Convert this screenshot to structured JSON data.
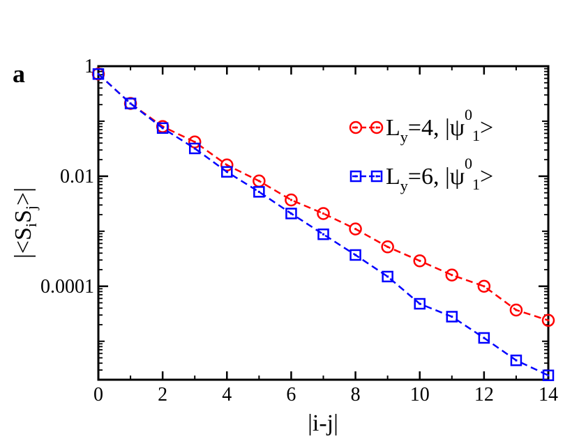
{
  "panel_label": "a",
  "chart_data": {
    "type": "line",
    "xlabel": "|i-j|",
    "ylabel": "|<S_i S_j>|",
    "ylabel_main": "|<S",
    "ylabel_sub1": "i",
    "ylabel_mid": "S",
    "ylabel_sub2": "j",
    "ylabel_end": ">|",
    "yscale": "log",
    "xlim": [
      0,
      14
    ],
    "ylim": [
      2e-06,
      1
    ],
    "x_ticks": [
      0,
      2,
      4,
      6,
      8,
      10,
      12,
      14
    ],
    "x_tick_labels": [
      "0",
      "2",
      "4",
      "6",
      "8",
      "10",
      "12",
      "14"
    ],
    "y_ticks": [
      1,
      0.01,
      0.0001
    ],
    "y_tick_labels": [
      "1",
      "0.01",
      "0.0001"
    ],
    "grid": false,
    "legend_position": "top-right",
    "series": [
      {
        "name": "L_y=4, |ψ^0_1>",
        "legend_main": "L",
        "legend_sub": "y",
        "legend_rest": "=4, |ψ",
        "legend_sup": "0",
        "legend_sub2": "1",
        "legend_end": ">",
        "color": "#ff0000",
        "marker": "circle",
        "x": [
          0,
          1,
          2,
          3,
          4,
          5,
          6,
          7,
          8,
          9,
          10,
          11,
          12,
          13,
          14
        ],
        "values": [
          0.72,
          0.21,
          0.08,
          0.042,
          0.016,
          0.0082,
          0.0037,
          0.0021,
          0.0011,
          0.00052,
          0.00029,
          0.00016,
          0.0001,
          3.7e-05,
          2.4e-05
        ]
      },
      {
        "name": "L_y=6, |ψ^0_1>",
        "legend_main": "L",
        "legend_sub": "y",
        "legend_rest": "=6, |ψ",
        "legend_sup": "0",
        "legend_sub2": "1",
        "legend_end": ">",
        "color": "#0000ff",
        "marker": "square",
        "x": [
          0,
          1,
          2,
          3,
          4,
          5,
          6,
          7,
          8,
          9,
          10,
          11,
          12,
          13,
          14
        ],
        "values": [
          0.72,
          0.21,
          0.075,
          0.032,
          0.012,
          0.0052,
          0.0021,
          0.00088,
          0.00037,
          0.00015,
          4.8e-05,
          2.8e-05,
          1.15e-05,
          4.5e-06,
          2.4e-06
        ]
      }
    ]
  }
}
